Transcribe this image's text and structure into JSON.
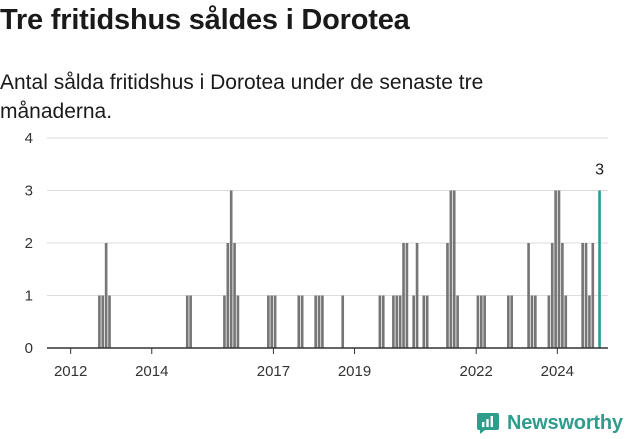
{
  "title": "Tre fritidshus såldes i Dorotea",
  "subtitle": "Antal sålda fritidshus i Dorotea under de senaste tre månaderna.",
  "brand": "Newsworthy",
  "colors": {
    "bar": "#767676",
    "highlight": "#2a9d8f",
    "grid": "#dddddd",
    "brand": "#2f9c8c"
  },
  "chart_data": {
    "type": "bar",
    "x_unit": "month",
    "ylim": [
      0,
      4
    ],
    "y_ticks": [
      0,
      1,
      2,
      3,
      4
    ],
    "x_range": [
      "2011-06",
      "2025-03"
    ],
    "x_ticks": [
      "2012",
      "2014",
      "2017",
      "2019",
      "2022",
      "2024"
    ],
    "grid": true,
    "values": [
      {
        "x": "2012-09",
        "y": 1
      },
      {
        "x": "2012-10",
        "y": 1
      },
      {
        "x": "2012-11",
        "y": 2
      },
      {
        "x": "2012-12",
        "y": 1
      },
      {
        "x": "2014-11",
        "y": 1
      },
      {
        "x": "2014-12",
        "y": 1
      },
      {
        "x": "2015-10",
        "y": 1
      },
      {
        "x": "2015-11",
        "y": 2
      },
      {
        "x": "2015-12",
        "y": 3
      },
      {
        "x": "2016-01",
        "y": 2
      },
      {
        "x": "2016-02",
        "y": 1
      },
      {
        "x": "2016-11",
        "y": 1
      },
      {
        "x": "2016-12",
        "y": 1
      },
      {
        "x": "2017-01",
        "y": 1
      },
      {
        "x": "2017-08",
        "y": 1
      },
      {
        "x": "2017-09",
        "y": 1
      },
      {
        "x": "2018-01",
        "y": 1
      },
      {
        "x": "2018-02",
        "y": 1
      },
      {
        "x": "2018-03",
        "y": 1
      },
      {
        "x": "2018-09",
        "y": 1
      },
      {
        "x": "2019-08",
        "y": 1
      },
      {
        "x": "2019-09",
        "y": 1
      },
      {
        "x": "2019-12",
        "y": 1
      },
      {
        "x": "2020-01",
        "y": 1
      },
      {
        "x": "2020-02",
        "y": 1
      },
      {
        "x": "2020-03",
        "y": 2
      },
      {
        "x": "2020-04",
        "y": 2
      },
      {
        "x": "2020-06",
        "y": 1
      },
      {
        "x": "2020-07",
        "y": 2
      },
      {
        "x": "2020-09",
        "y": 1
      },
      {
        "x": "2020-10",
        "y": 1
      },
      {
        "x": "2021-04",
        "y": 2
      },
      {
        "x": "2021-05",
        "y": 3
      },
      {
        "x": "2021-06",
        "y": 3
      },
      {
        "x": "2021-07",
        "y": 1
      },
      {
        "x": "2022-01",
        "y": 1
      },
      {
        "x": "2022-02",
        "y": 1
      },
      {
        "x": "2022-03",
        "y": 1
      },
      {
        "x": "2022-10",
        "y": 1
      },
      {
        "x": "2022-11",
        "y": 1
      },
      {
        "x": "2023-04",
        "y": 2
      },
      {
        "x": "2023-05",
        "y": 1
      },
      {
        "x": "2023-06",
        "y": 1
      },
      {
        "x": "2023-10",
        "y": 1
      },
      {
        "x": "2023-11",
        "y": 2
      },
      {
        "x": "2023-12",
        "y": 3
      },
      {
        "x": "2024-01",
        "y": 3
      },
      {
        "x": "2024-02",
        "y": 2
      },
      {
        "x": "2024-03",
        "y": 1
      },
      {
        "x": "2024-08",
        "y": 2
      },
      {
        "x": "2024-09",
        "y": 2
      },
      {
        "x": "2024-10",
        "y": 1
      },
      {
        "x": "2024-11",
        "y": 2
      },
      {
        "x": "2025-01",
        "y": 3,
        "highlight": true,
        "label": "3"
      }
    ]
  }
}
